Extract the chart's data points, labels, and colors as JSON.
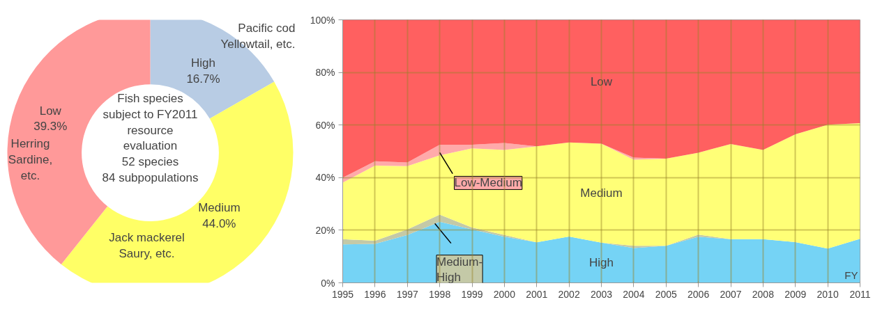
{
  "chart_data": [
    {
      "type": "donut",
      "categories": [
        "High",
        "Medium",
        "Low"
      ],
      "values": [
        16.7,
        44.0,
        39.3
      ],
      "colors": [
        "#b8cce4",
        "#ffff66",
        "#ff9999"
      ],
      "value_labels": [
        "16.7%",
        "44.0%",
        "39.3%"
      ],
      "annotations": [
        "Fish species\nsubject to FY2011\nresource\nevaluation\n52 species\n84 subpopulations",
        "Pacific cod\nYellowtail, etc.",
        "Jack mackerel\nSaury, etc.",
        "Herring\nSardine,\netc."
      ]
    },
    {
      "type": "area",
      "stacked": true,
      "xlabel": "FY",
      "x": [
        1995,
        1996,
        1997,
        1998,
        1999,
        2000,
        2001,
        2002,
        2003,
        2004,
        2005,
        2006,
        2007,
        2008,
        2009,
        2010,
        2011
      ],
      "series": [
        {
          "name": "High",
          "color": "#75d3f5",
          "values": [
            14.6,
            14.8,
            18.2,
            23.2,
            20.3,
            17.5,
            15.4,
            17.6,
            15.3,
            13.2,
            14.1,
            17.5,
            16.6,
            16.6,
            15.5,
            13.0,
            16.7
          ]
        },
        {
          "name": "Medium-High",
          "color": "#c4c9a7",
          "values": [
            2.0,
            1.2,
            2.1,
            2.7,
            0.7,
            0.7,
            0,
            0,
            0,
            0.9,
            0,
            0.8,
            0,
            0,
            0,
            0,
            0
          ]
        },
        {
          "name": "Medium",
          "color": "#ffff77",
          "values": [
            21.5,
            28.6,
            24.1,
            22.6,
            30.1,
            32.3,
            36.5,
            35.8,
            37.6,
            32.7,
            33.1,
            31.2,
            36.2,
            33.9,
            41.0,
            47.1,
            44.0
          ]
        },
        {
          "name": "Low-Medium",
          "color": "#ffaaaa",
          "values": [
            1.9,
            1.6,
            1.4,
            4.0,
            1.4,
            2.7,
            0,
            0,
            0,
            0.8,
            0,
            0,
            0,
            0,
            0,
            0,
            0
          ]
        },
        {
          "name": "Low",
          "color": "#ff6060",
          "values": [
            60.0,
            53.8,
            54.2,
            47.5,
            47.5,
            46.8,
            48.1,
            46.6,
            47.1,
            52.4,
            52.8,
            50.5,
            47.2,
            49.5,
            43.5,
            39.9,
            39.3
          ]
        }
      ],
      "xlim": [
        1995,
        2011
      ],
      "xticks": [
        1995,
        1996,
        1997,
        1998,
        1999,
        2000,
        2001,
        2002,
        2003,
        2004,
        2005,
        2006,
        2007,
        2008,
        2009,
        2010,
        2011
      ],
      "ylim": [
        0,
        100
      ],
      "yticks": [
        {
          "value": 0,
          "label": "0%"
        },
        {
          "value": 20,
          "label": "20%"
        },
        {
          "value": 40,
          "label": "40%"
        },
        {
          "value": 60,
          "label": "60%"
        },
        {
          "value": 80,
          "label": "80%"
        },
        {
          "value": 100,
          "label": "100%"
        }
      ],
      "grid": true
    }
  ]
}
